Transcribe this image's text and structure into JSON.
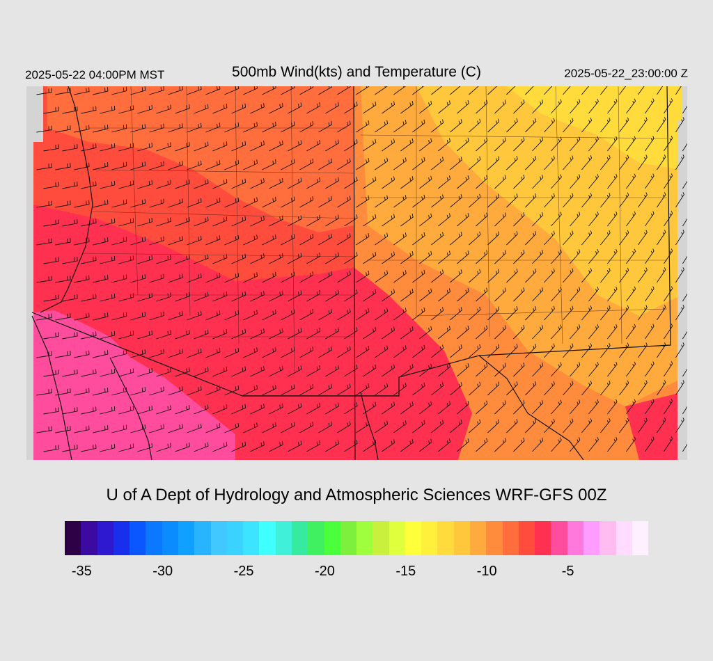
{
  "header": {
    "valid_local": "2025-05-22 04:00PM MST",
    "title": "500mb Wind(kts) and Temperature (C)",
    "valid_utc": "2025-05-22_23:00:00 Z"
  },
  "footer": {
    "credit": "U of A Dept of Hydrology and Atmospheric Sciences WRF-GFS 00Z"
  },
  "colorbar": {
    "min": -36,
    "max": -1,
    "step": 1,
    "colors": [
      "#2e0046",
      "#3b0aa0",
      "#2e18d0",
      "#1830ee",
      "#0a56ff",
      "#0a78ff",
      "#0a8cff",
      "#10a0ff",
      "#28b4ff",
      "#40c8ff",
      "#3cd2ff",
      "#3ce4ff",
      "#40ffff",
      "#40f0d8",
      "#36eba0",
      "#40f060",
      "#4cff3c",
      "#7cf03c",
      "#a0ff3c",
      "#c8f03c",
      "#e0ff3c",
      "#ffff3c",
      "#fff03c",
      "#ffdc3c",
      "#ffc83c",
      "#ffaa3c",
      "#ff8c3c",
      "#ff6e3c",
      "#ff4c3c",
      "#ff3050",
      "#ff4c9c",
      "#ff78dc",
      "#ff9cff",
      "#ffbcf0",
      "#ffdcff",
      "#fff0ff"
    ],
    "tick_labels": [
      "-35",
      "-30",
      "-25",
      "-20",
      "-15",
      "-10",
      "-5"
    ]
  },
  "map": {
    "field": "500mb temperature (C) with wind barbs (kts)",
    "colors": {
      "pink_cold": "#ff4c9c",
      "red": "#ff3050",
      "red_orange": "#ff4c3c",
      "orange": "#ff6e3c",
      "light_orange": "#ff8c3c",
      "amber": "#ffaa3c",
      "gold": "#ffc83c",
      "yellow": "#ffdc3c"
    }
  }
}
